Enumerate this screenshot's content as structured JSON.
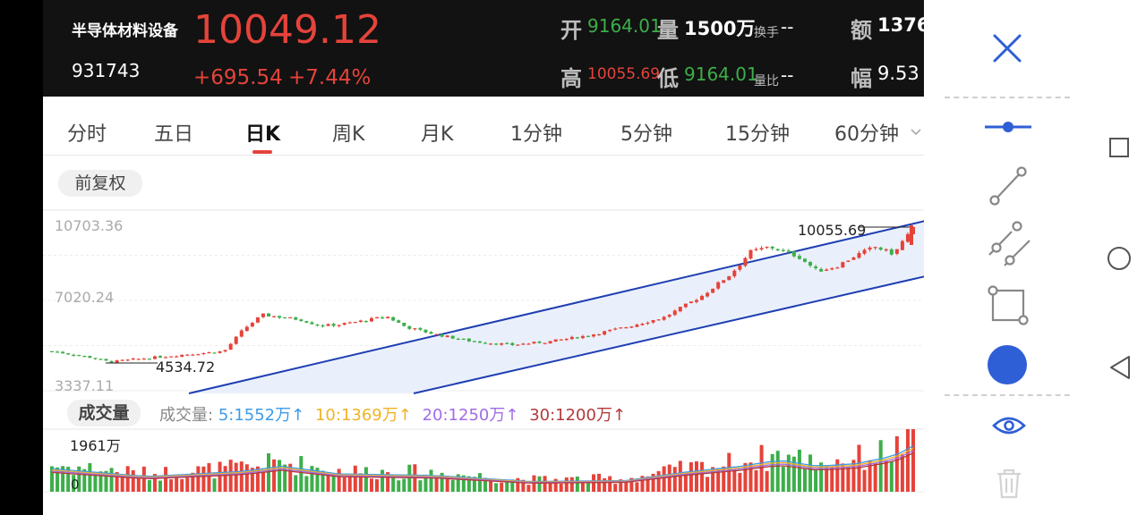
{
  "header": {
    "name": "半导体材料设备",
    "code": "931743",
    "price": "10049.12",
    "change": "+695.54",
    "change_pct": "+7.44%",
    "open_label": "开",
    "open_value": "9164.01",
    "vol_label": "量",
    "vol_value": "1500万",
    "turnover_label": "换手",
    "turnover_value": "--",
    "amount_label": "额",
    "amount_value": "1376",
    "high_label": "高",
    "high_value": "10055.69",
    "low_label": "低",
    "low_value": "9164.01",
    "ratio_label": "量比",
    "ratio_value": "--",
    "amp_label": "幅",
    "amp_value": "9.53"
  },
  "tabs": [
    {
      "label": "分时"
    },
    {
      "label": "五日"
    },
    {
      "label": "日K"
    },
    {
      "label": "周K"
    },
    {
      "label": "月K"
    },
    {
      "label": "1分钟"
    },
    {
      "label": "5分钟"
    },
    {
      "label": "15分钟"
    },
    {
      "label": "60分钟"
    }
  ],
  "active_tab": "日K",
  "adjust_label": "前复权",
  "volume_panel": {
    "title": "成交量",
    "ma_label": "成交量:",
    "ma": [
      {
        "text": "5:1552万",
        "color": "#3d9be9"
      },
      {
        "text": "10:1369万",
        "color": "#f0b324"
      },
      {
        "text": "20:1250万",
        "color": "#a06ce6"
      },
      {
        "text": "30:1200万",
        "color": "#b33a3a"
      }
    ],
    "max_label": "1961万",
    "bottom_label": "0"
  },
  "chart_data": {
    "type": "candlestick",
    "y_ticks": [
      "10703.36",
      "7020.24",
      "3337.11"
    ],
    "ylim": [
      3337.11,
      10703.36
    ],
    "annotations": {
      "max": "10055.69",
      "min": "4534.72"
    },
    "trend_channel": true,
    "close_path": [
      [
        0,
        5000
      ],
      [
        20,
        4750
      ],
      [
        30,
        4560
      ],
      [
        50,
        4720
      ],
      [
        70,
        4870
      ],
      [
        90,
        5000
      ],
      [
        100,
        5900
      ],
      [
        110,
        6500
      ],
      [
        120,
        6400
      ],
      [
        130,
        6300
      ],
      [
        140,
        6050
      ],
      [
        150,
        6100
      ],
      [
        160,
        6220
      ],
      [
        175,
        6430
      ],
      [
        185,
        6000
      ],
      [
        200,
        5700
      ],
      [
        220,
        5400
      ],
      [
        240,
        5260
      ],
      [
        260,
        5400
      ],
      [
        280,
        5650
      ],
      [
        300,
        6000
      ],
      [
        320,
        6400
      ],
      [
        340,
        7300
      ],
      [
        355,
        8200
      ],
      [
        365,
        9100
      ],
      [
        375,
        9300
      ],
      [
        390,
        8900
      ],
      [
        400,
        8300
      ],
      [
        410,
        8500
      ],
      [
        420,
        8950
      ],
      [
        430,
        9300
      ],
      [
        440,
        9000
      ],
      [
        445,
        9600
      ],
      [
        450,
        10049
      ]
    ],
    "volume_path": [
      [
        0,
        0.45
      ],
      [
        50,
        0.3
      ],
      [
        100,
        0.4
      ],
      [
        120,
        0.5
      ],
      [
        150,
        0.35
      ],
      [
        200,
        0.32
      ],
      [
        250,
        0.2
      ],
      [
        300,
        0.22
      ],
      [
        330,
        0.38
      ],
      [
        360,
        0.5
      ],
      [
        380,
        0.62
      ],
      [
        400,
        0.5
      ],
      [
        420,
        0.55
      ],
      [
        440,
        0.7
      ],
      [
        450,
        0.9
      ]
    ]
  },
  "toolbar": {
    "close": "close-icon",
    "tools": [
      "horizontal-line-icon",
      "segment-icon",
      "parallel-lines-icon",
      "rectangle-icon",
      "color-circle-icon",
      "eye-icon",
      "trash-icon"
    ],
    "accent": "#2f5fd6"
  },
  "colors": {
    "up": "#e5433a",
    "down": "#3dae4a",
    "channel": "#1f3fb3"
  }
}
